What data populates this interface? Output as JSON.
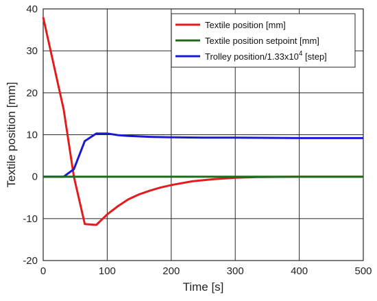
{
  "chart_data": {
    "type": "line",
    "title": "",
    "xlabel": "Time [s]",
    "ylabel": "Textile position [mm]",
    "xlim": [
      0,
      500
    ],
    "ylim": [
      -20,
      40
    ],
    "xticks": [
      0,
      100,
      200,
      300,
      400,
      500
    ],
    "yticks": [
      -20,
      -10,
      0,
      10,
      20,
      30,
      40
    ],
    "grid": true,
    "legend_position": "top-right",
    "series": [
      {
        "name": "Textile position [mm]",
        "color": "#e41a1c",
        "x": [
          0,
          32,
          48,
          65,
          83,
          100,
          117,
          133,
          150,
          167,
          183,
          200,
          233,
          267,
          300,
          333,
          367,
          400,
          450,
          500
        ],
        "y": [
          38,
          16,
          0,
          -11.3,
          -11.5,
          -9,
          -7,
          -5.4,
          -4.2,
          -3.3,
          -2.6,
          -2,
          -1.1,
          -0.6,
          -0.25,
          -0.1,
          -0.05,
          0,
          0,
          0
        ]
      },
      {
        "name": "Textile position setpoint [mm]",
        "color": "#1e6b1e",
        "x": [
          0,
          500
        ],
        "y": [
          0,
          0
        ]
      },
      {
        "name": "Trolley position/1.33x10",
        "name_sup": "4",
        "name_suffix": " [step]",
        "color": "#1a1ad6",
        "x": [
          0,
          32,
          48,
          65,
          83,
          100,
          117,
          133,
          167,
          200,
          250,
          300,
          400,
          500
        ],
        "y": [
          0,
          0,
          1.8,
          8.5,
          10.3,
          10.3,
          9.9,
          9.7,
          9.5,
          9.4,
          9.3,
          9.3,
          9.2,
          9.2
        ]
      }
    ]
  }
}
